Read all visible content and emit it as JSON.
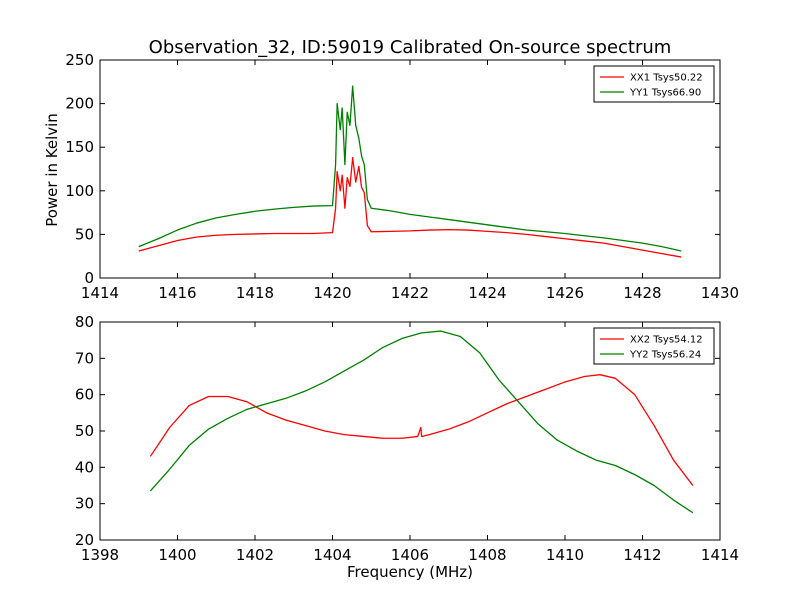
{
  "figure": {
    "title": "Observation_32, ID:59019 Calibrated On-source spectrum",
    "ylabel": "Power in Kelvin",
    "xlabel": "Frequency (MHz)",
    "colors": {
      "red": "#ff0000",
      "green": "#008000"
    }
  },
  "chart_data": [
    {
      "type": "line",
      "xlim": [
        1414,
        1430
      ],
      "ylim": [
        0,
        250
      ],
      "xticks": [
        "1414",
        "1416",
        "1418",
        "1420",
        "1422",
        "1424",
        "1426",
        "1428",
        "1430"
      ],
      "yticks": [
        "0",
        "50",
        "100",
        "150",
        "200",
        "250"
      ],
      "legend_position": "top-right",
      "series": [
        {
          "name": "XX1 Tsys50.22",
          "color": "#ff0000",
          "x": [
            1415.0,
            1415.5,
            1416.0,
            1416.5,
            1417.0,
            1417.5,
            1418.0,
            1418.5,
            1419.0,
            1419.5,
            1420.0,
            1420.08,
            1420.12,
            1420.2,
            1420.25,
            1420.32,
            1420.38,
            1420.45,
            1420.52,
            1420.6,
            1420.68,
            1420.75,
            1420.82,
            1420.9,
            1421.0,
            1421.5,
            1422.0,
            1422.5,
            1423.0,
            1423.5,
            1424.0,
            1424.5,
            1425.0,
            1425.5,
            1426.0,
            1426.5,
            1427.0,
            1427.5,
            1428.0,
            1428.5,
            1429.0
          ],
          "y": [
            31,
            37,
            43,
            47,
            49,
            50,
            50.5,
            51,
            51,
            51,
            52,
            80,
            122,
            100,
            118,
            80,
            115,
            105,
            138,
            110,
            128,
            104,
            98,
            60,
            53,
            53.5,
            54,
            55,
            55.5,
            55,
            53.5,
            52,
            50,
            47.5,
            45,
            42.5,
            40,
            36,
            32,
            28,
            24
          ]
        },
        {
          "name": "YY1 Tsys66.90",
          "color": "#008000",
          "x": [
            1415.0,
            1415.5,
            1416.0,
            1416.5,
            1417.0,
            1417.5,
            1418.0,
            1418.5,
            1419.0,
            1419.5,
            1420.0,
            1420.08,
            1420.12,
            1420.2,
            1420.25,
            1420.32,
            1420.38,
            1420.45,
            1420.52,
            1420.6,
            1420.68,
            1420.75,
            1420.82,
            1420.9,
            1421.0,
            1421.5,
            1422.0,
            1422.5,
            1423.0,
            1423.5,
            1424.0,
            1424.5,
            1425.0,
            1425.5,
            1426.0,
            1426.5,
            1427.0,
            1427.5,
            1428.0,
            1428.5,
            1429.0
          ],
          "y": [
            36,
            45,
            55,
            63,
            69,
            73,
            76.5,
            79,
            81,
            82.5,
            83,
            130,
            200,
            170,
            195,
            130,
            190,
            175,
            220,
            175,
            160,
            140,
            130,
            90,
            80,
            77,
            73,
            70,
            67,
            64,
            61,
            58,
            55,
            53,
            51,
            48.5,
            46,
            43,
            40,
            36,
            31
          ]
        }
      ]
    },
    {
      "type": "line",
      "xlim": [
        1398,
        1414
      ],
      "ylim": [
        20,
        80
      ],
      "xticks": [
        "1398",
        "1400",
        "1402",
        "1404",
        "1406",
        "1408",
        "1410",
        "1412",
        "1414"
      ],
      "yticks": [
        "20",
        "30",
        "40",
        "50",
        "60",
        "70",
        "80"
      ],
      "legend_position": "top-right",
      "series": [
        {
          "name": "XX2 Tsys54.12",
          "color": "#ff0000",
          "x": [
            1399.3,
            1399.8,
            1400.3,
            1400.8,
            1401.3,
            1401.8,
            1402.3,
            1402.8,
            1403.3,
            1403.8,
            1404.3,
            1404.8,
            1405.3,
            1405.8,
            1406.2,
            1406.28,
            1406.3,
            1406.5,
            1407.0,
            1407.5,
            1408.0,
            1408.5,
            1409.0,
            1409.5,
            1410.0,
            1410.5,
            1410.9,
            1411.3,
            1411.8,
            1412.3,
            1412.8,
            1413.3
          ],
          "y": [
            43,
            51,
            57,
            59.5,
            59.5,
            58,
            55,
            53,
            51.5,
            50,
            49,
            48.5,
            48,
            48,
            48.5,
            51,
            48.5,
            49,
            50.5,
            52.5,
            55,
            57.5,
            59.5,
            61.5,
            63.5,
            65,
            65.5,
            64.5,
            60,
            51.5,
            42,
            35
          ]
        },
        {
          "name": "YY2 Tsys56.24",
          "color": "#008000",
          "x": [
            1399.3,
            1399.8,
            1400.3,
            1400.8,
            1401.3,
            1401.8,
            1402.3,
            1402.8,
            1403.3,
            1403.8,
            1404.3,
            1404.8,
            1405.3,
            1405.8,
            1406.3,
            1406.8,
            1407.3,
            1407.8,
            1408.3,
            1408.8,
            1409.3,
            1409.8,
            1410.3,
            1410.8,
            1411.3,
            1411.8,
            1412.3,
            1412.8,
            1413.3
          ],
          "y": [
            33.5,
            39.5,
            46,
            50.5,
            53.5,
            56,
            57.5,
            59,
            61,
            63.5,
            66.5,
            69.5,
            73,
            75.5,
            77,
            77.5,
            76,
            71.5,
            64,
            58,
            52,
            47.5,
            44.5,
            42,
            40.5,
            38,
            35,
            31,
            27.5
          ]
        }
      ]
    }
  ]
}
